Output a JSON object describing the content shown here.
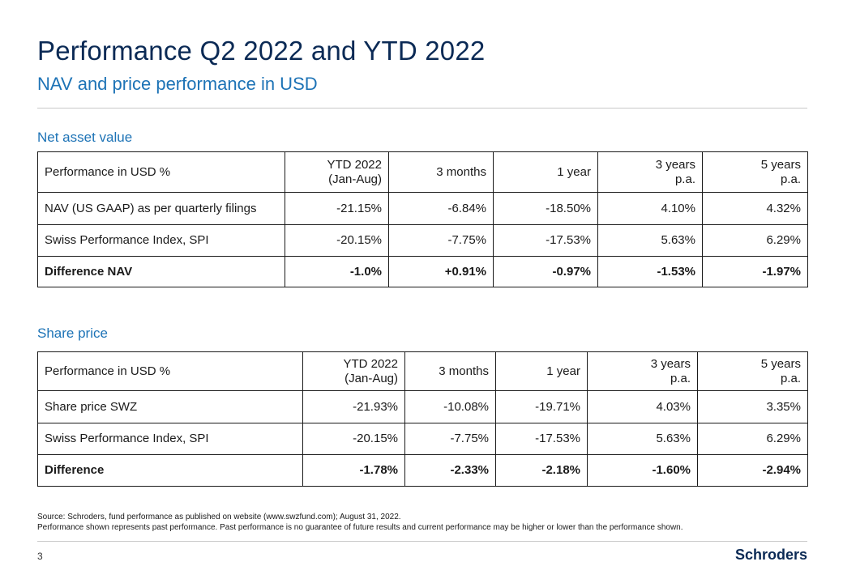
{
  "title": "Performance Q2 2022 and YTD 2022",
  "subtitle": "NAV and price performance  in USD",
  "nav_section": {
    "label": "Net asset  value",
    "headers": [
      {
        "line1": "Performance in USD %",
        "line2": ""
      },
      {
        "line1": "YTD 2022",
        "line2": "(Jan-Aug)"
      },
      {
        "line1": "3 months",
        "line2": ""
      },
      {
        "line1": "1 year",
        "line2": ""
      },
      {
        "line1": "3 years",
        "line2": "p.a."
      },
      {
        "line1": "5 years",
        "line2": "p.a."
      }
    ],
    "rows": [
      {
        "cells": [
          "NAV (US GAAP) as per quarterly filings",
          "-21.15%",
          "-6.84%",
          "-18.50%",
          "4.10%",
          "4.32%"
        ]
      },
      {
        "cells": [
          "Swiss Performance Index, SPI",
          "-20.15%",
          "-7.75%",
          "-17.53%",
          "5.63%",
          "6.29%"
        ]
      },
      {
        "cells": [
          "Difference  NAV",
          "-1.0%",
          "+0.91%",
          "-0.97%",
          "-1.53%",
          "-1.97%"
        ]
      }
    ]
  },
  "share_section": {
    "label": "Share price",
    "headers": [
      {
        "line1": "Performance in USD %",
        "line2": ""
      },
      {
        "line1": "YTD 2022",
        "line2": "(Jan-Aug)"
      },
      {
        "line1": "3 months",
        "line2": ""
      },
      {
        "line1": "1 year",
        "line2": ""
      },
      {
        "line1": "3 years",
        "line2": "p.a."
      },
      {
        "line1": "5 years",
        "line2": "p.a."
      }
    ],
    "rows": [
      {
        "cells": [
          "Share price SWZ",
          "-21.93%",
          "-10.08%",
          "-19.71%",
          "4.03%",
          "3.35%"
        ]
      },
      {
        "cells": [
          "Swiss Performance Index, SPI",
          "-20.15%",
          "-7.75%",
          "-17.53%",
          "5.63%",
          "6.29%"
        ]
      },
      {
        "cells": [
          "Difference",
          "-1.78%",
          "-2.33%",
          "-2.18%",
          "-1.60%",
          "-2.94%"
        ]
      }
    ]
  },
  "footer": {
    "source": "Source: Schroders, fund performance as published on website (www.swzfund.com); August 31, 2022.",
    "disclaimer": "Performance shown represents past performance. Past performance is no guarantee of future results and current performance may be higher or lower than the performance shown.",
    "page_number": "3",
    "logo": "Schroders"
  }
}
